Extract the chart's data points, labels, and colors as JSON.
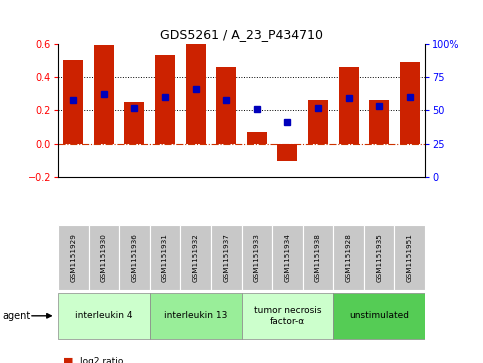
{
  "title": "GDS5261 / A_23_P434710",
  "samples": [
    "GSM1151929",
    "GSM1151930",
    "GSM1151936",
    "GSM1151931",
    "GSM1151932",
    "GSM1151937",
    "GSM1151933",
    "GSM1151934",
    "GSM1151938",
    "GSM1151928",
    "GSM1151935",
    "GSM1151951"
  ],
  "log2_ratio": [
    0.5,
    0.59,
    0.25,
    0.53,
    0.6,
    0.46,
    0.07,
    -0.1,
    0.26,
    0.46,
    0.26,
    0.49
  ],
  "percentile_rank_pct": [
    58,
    62,
    52,
    60,
    66,
    58,
    51,
    41,
    52,
    59,
    53,
    60
  ],
  "agents": [
    {
      "label": "interleukin 4",
      "start": 0,
      "end": 2,
      "color": "#ccffcc"
    },
    {
      "label": "interleukin 13",
      "start": 3,
      "end": 5,
      "color": "#99ee99"
    },
    {
      "label": "tumor necrosis\nfactor-α",
      "start": 6,
      "end": 8,
      "color": "#ccffcc"
    },
    {
      "label": "unstimulated",
      "start": 9,
      "end": 11,
      "color": "#55cc55"
    }
  ],
  "ylim_left": [
    -0.2,
    0.6
  ],
  "ylim_right": [
    0,
    100
  ],
  "yticks_left": [
    -0.2,
    0.0,
    0.2,
    0.4,
    0.6
  ],
  "yticks_right": [
    0,
    25,
    50,
    75,
    100
  ],
  "bar_color": "#cc2200",
  "dot_color": "#0000bb",
  "zero_line_color": "#cc3300",
  "grid_color": "black",
  "bg_color": "white",
  "sample_bg_color": "#c8c8c8",
  "agent_label": "agent",
  "legend_bar_color": "#cc2200",
  "legend_dot_color": "#0000bb"
}
